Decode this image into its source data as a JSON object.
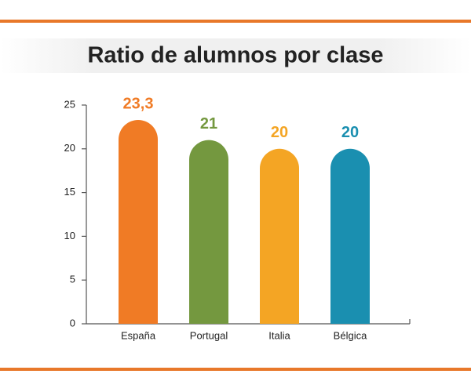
{
  "chart_data": {
    "type": "bar",
    "title": "Ratio de alumnos por clase",
    "categories": [
      "España",
      "Portugal",
      "Italia",
      "Bélgica"
    ],
    "values": [
      23.3,
      21,
      20,
      20
    ],
    "value_labels": [
      "23,3",
      "21",
      "20",
      "20"
    ],
    "colors": [
      "#f07b25",
      "#74983f",
      "#f4a524",
      "#1a8fb0"
    ],
    "ylim": [
      0,
      25
    ],
    "yticks": [
      0,
      5,
      10,
      15,
      20,
      25
    ],
    "grid": false
  }
}
